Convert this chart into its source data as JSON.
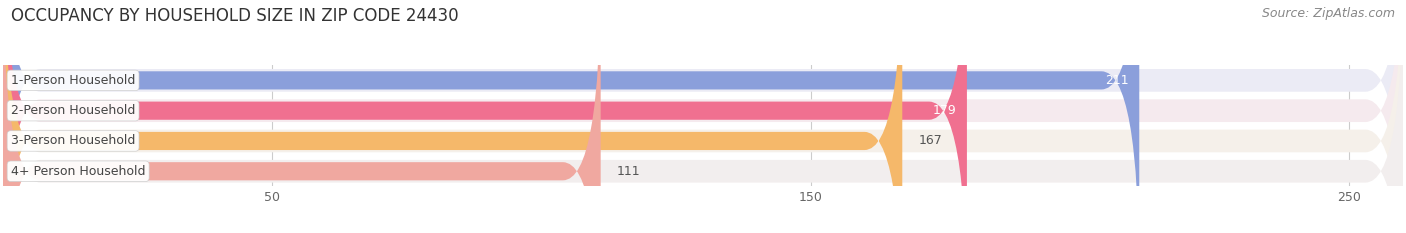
{
  "title": "OCCUPANCY BY HOUSEHOLD SIZE IN ZIP CODE 24430",
  "source": "Source: ZipAtlas.com",
  "categories": [
    "1-Person Household",
    "2-Person Household",
    "3-Person Household",
    "4+ Person Household"
  ],
  "values": [
    211,
    179,
    167,
    111
  ],
  "bar_colors": [
    "#8B9FDB",
    "#F07090",
    "#F5B86A",
    "#F0A8A0"
  ],
  "bar_bg_colors": [
    "#EBEBF5",
    "#F5EAEE",
    "#F5F0EA",
    "#F2EEEE"
  ],
  "value_colors": [
    "white",
    "white",
    "#555555",
    "#555555"
  ],
  "xlim": [
    0,
    260
  ],
  "xticks": [
    50,
    150,
    250
  ],
  "title_fontsize": 12,
  "source_fontsize": 9,
  "label_fontsize": 9,
  "value_fontsize": 9,
  "background_color": "#FFFFFF"
}
